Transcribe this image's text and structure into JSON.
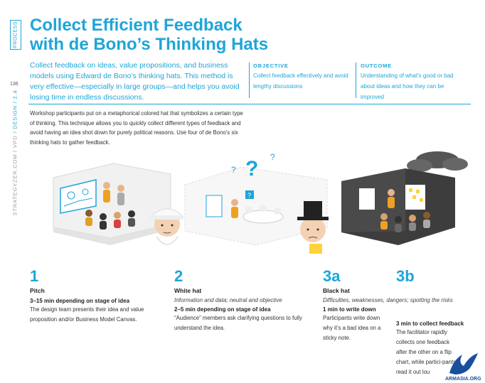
{
  "sidebar": {
    "section_tab": "PROCESS",
    "page_number": "136",
    "breadcrumb_prefix": "STRATEGYZER.COM / VPD / ",
    "breadcrumb_current": "DESIGN / 2.4"
  },
  "header": {
    "title_line1": "Collect Efficient Feedback",
    "title_line2": "with de Bono’s Thinking Hats",
    "intro": "Collect feedback on ideas, value propositions, and business models using Edward de Bono’s thinking hats. This method is very effective—especially in large groups—and helps you avoid losing time in endless discussions."
  },
  "objective": {
    "label": "OBJECTIVE",
    "text": "Collect feedback effectively and avoid lengthy discussions"
  },
  "outcome": {
    "label": "OUTCOME",
    "text": "Understanding of what’s good or bad about ideas and how they can be improved"
  },
  "workshop_text": "Workshop participants put on a metaphorical colored hat that symbolizes a certain type of thinking. This technique allows you to quickly collect different types of feedback and avoid having an idea shot down for purely political reasons. Use four of de Bono’s six thinking hats to gather feedback.",
  "steps": [
    {
      "number": "1",
      "name": "Pitch",
      "subtitle": "",
      "time": "3–15 min depending on stage of idea",
      "text": "The design team presents their idea and value proposition and/or Business Model Canvas."
    },
    {
      "number": "2",
      "name": "White hat",
      "subtitle": "Information and data; neutral and objective",
      "time": "2–5 min depending on stage of idea",
      "text": "“Audience” members ask clarifying questions to fully understand the idea."
    },
    {
      "number": "3a",
      "name": "Black hat",
      "subtitle": "Difficulties, weaknesses, dangers; spotting the risks",
      "time": "1 min to write down",
      "text": "Participants write down why it’s a bad idea on a sticky note."
    },
    {
      "number": "3b",
      "name": "",
      "subtitle": "",
      "time": "3 min to collect feedback",
      "text": "The facilitator rapidly collects one feedback after the other on a flip chart, while partici-pants read it out lou"
    }
  ],
  "watermark": "ARMASIA.ORG",
  "colors": {
    "accent": "#1ea5d8",
    "dark_room": "#4a4a4a",
    "cloud": "#555555"
  }
}
